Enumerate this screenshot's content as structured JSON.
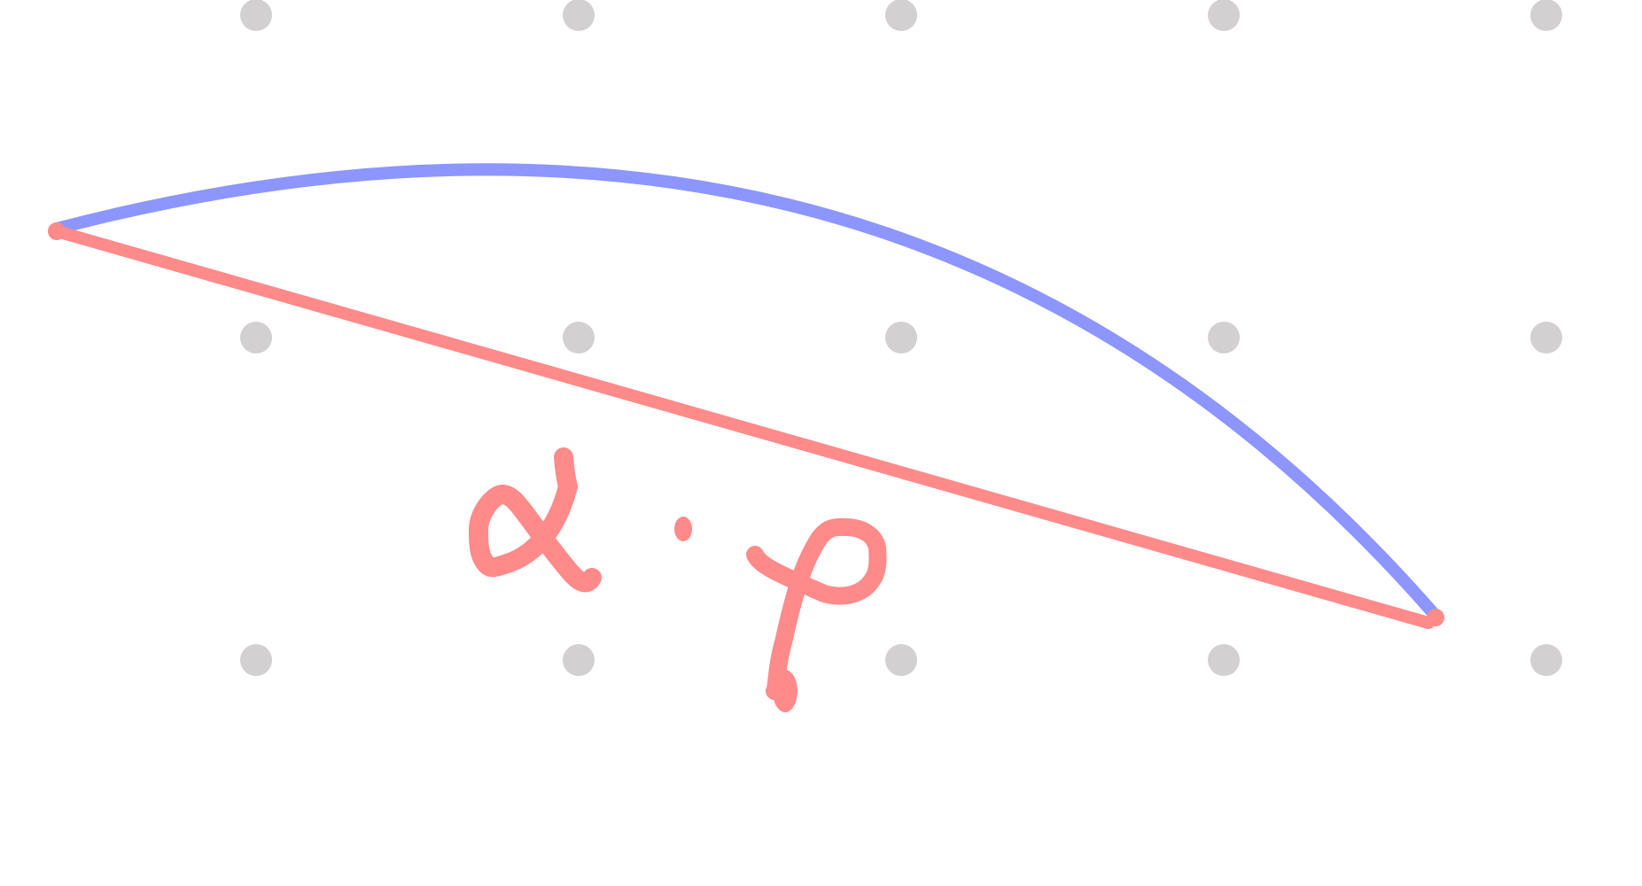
{
  "canvas": {
    "background": "#ffffff"
  },
  "grid": {
    "dot_color": "#d2d0d0",
    "columns": 5,
    "rows": 3
  },
  "strokes": {
    "arc_color": "#8c96fe",
    "chord_color": "#ff8a8a"
  },
  "annotation": {
    "text": "α · φ",
    "color": "#ff8a8a",
    "style": "handwritten"
  }
}
